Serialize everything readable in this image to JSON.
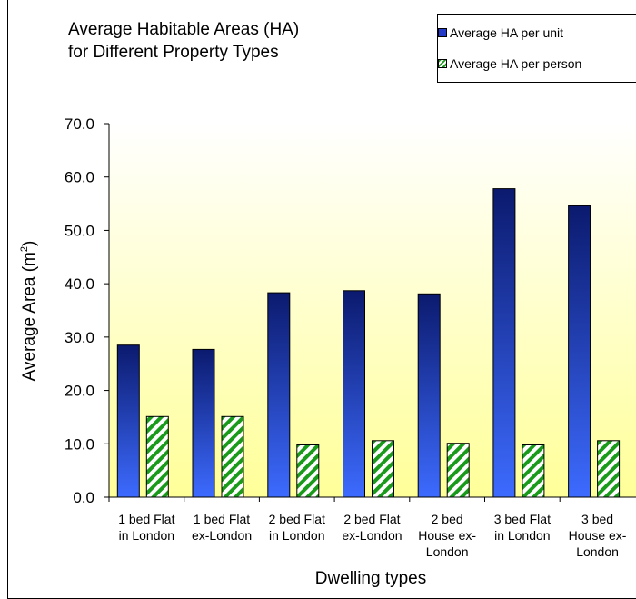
{
  "chart_data": {
    "type": "bar",
    "title": "Average Habitable Areas (HA)\nfor Different Property Types",
    "xlabel": "Dwelling types",
    "ylabel": "Average Area (m²)",
    "ylim": [
      0,
      70
    ],
    "yticks": [
      "0.0",
      "10.0",
      "20.0",
      "30.0",
      "40.0",
      "50.0",
      "60.0",
      "70.0"
    ],
    "categories": [
      "1 bed Flat\nin London",
      "1 bed Flat\nex-London",
      "2 bed Flat\nin London",
      "2 bed Flat\nex-London",
      "2 bed\nHouse ex-\nLondon",
      "3 bed Flat\nin London",
      "3 bed\nHouse ex-\nLondon"
    ],
    "series": [
      {
        "name": "Average HA per unit",
        "color": "#2339c8",
        "values": [
          28.5,
          27.7,
          38.3,
          38.7,
          38.1,
          57.8,
          54.6
        ]
      },
      {
        "name": "Average HA per person",
        "color": "#1a9a1a",
        "values": [
          15.1,
          15.1,
          9.8,
          10.6,
          10.1,
          9.8,
          10.6
        ]
      }
    ],
    "grid": false,
    "legend": "top-right",
    "background": "yellow-gradient"
  }
}
